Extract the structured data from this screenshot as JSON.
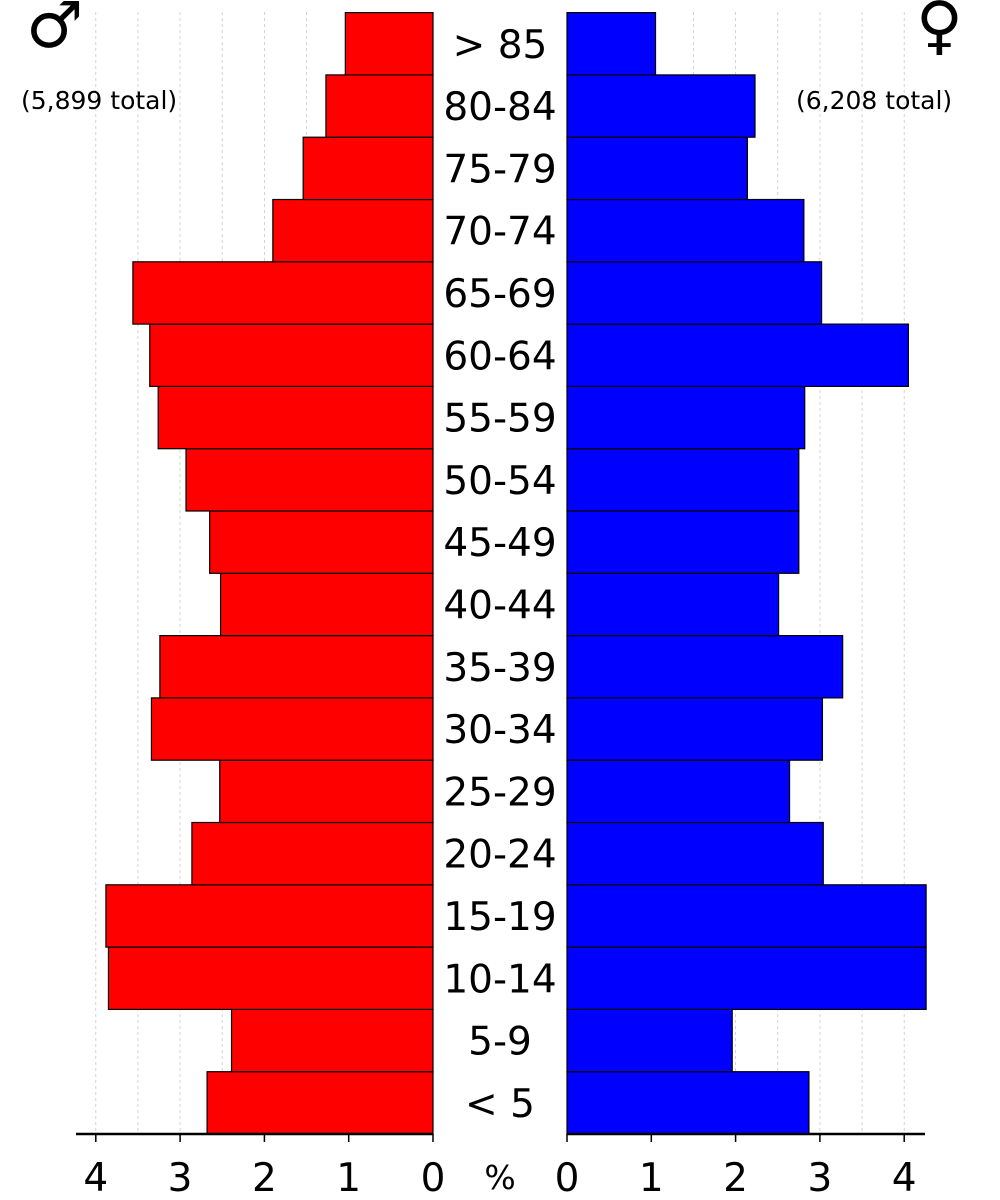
{
  "chart_data": {
    "type": "bar",
    "orientation": "horizontal",
    "categories": [
      "< 5",
      "5-9",
      "10-14",
      "15-19",
      "20-24",
      "25-29",
      "30-34",
      "35-39",
      "40-44",
      "45-49",
      "50-54",
      "55-59",
      "60-64",
      "65-69",
      "70-74",
      "75-79",
      "80-84",
      "> 85"
    ],
    "series": [
      {
        "side": "left",
        "color": "#ff0000",
        "total_label": "(5,899 total)",
        "symbol": "♂",
        "values": [
          2.68,
          2.39,
          3.85,
          3.88,
          2.86,
          2.53,
          3.34,
          3.24,
          2.52,
          2.65,
          2.93,
          3.26,
          3.36,
          3.56,
          1.9,
          1.54,
          1.27,
          1.04
        ]
      },
      {
        "side": "right",
        "color": "#0000ff",
        "total_label": "(6,208 total)",
        "symbol": "♀",
        "values": [
          2.87,
          1.96,
          4.26,
          4.26,
          3.04,
          2.64,
          3.03,
          3.27,
          2.51,
          2.75,
          2.75,
          2.82,
          4.05,
          3.02,
          2.81,
          2.14,
          2.23,
          1.05
        ]
      }
    ],
    "xlim": [
      0,
      4.26
    ],
    "x_ticks": [
      0,
      1,
      2,
      3,
      4
    ],
    "center_axis_label": "%",
    "grid": "vertical dashed"
  }
}
